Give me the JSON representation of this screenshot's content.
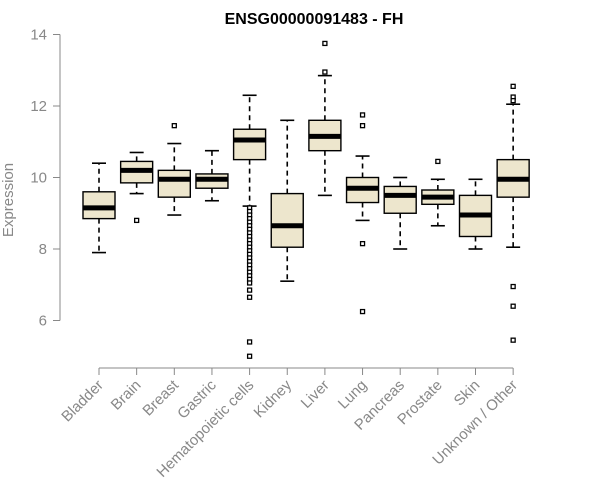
{
  "chart_data": {
    "type": "boxplot",
    "title": "ENSG00000091483 - FH",
    "xlabel": "",
    "ylabel": "Expression",
    "ylim": [
      4.6,
      14.2
    ],
    "yticks": [
      6,
      8,
      10,
      12,
      14
    ],
    "categories": [
      "Bladder",
      "Brain",
      "Breast",
      "Gastric",
      "Hematopoietic cells",
      "Kidney",
      "Liver",
      "Lung",
      "Pancreas",
      "Prostate",
      "Skin",
      "Unknown / Other"
    ],
    "colors": {
      "box_fill": "#ede6cd",
      "box_stroke": "#000000",
      "median": "#000000",
      "axis": "#888888"
    },
    "boxes": [
      {
        "name": "Bladder",
        "whisker_low": 7.9,
        "q1": 8.85,
        "median": 9.15,
        "q3": 9.6,
        "whisker_high": 10.4,
        "outliers": []
      },
      {
        "name": "Brain",
        "whisker_low": 9.55,
        "q1": 9.85,
        "median": 10.2,
        "q3": 10.45,
        "whisker_high": 10.7,
        "outliers": [
          8.8
        ]
      },
      {
        "name": "Breast",
        "whisker_low": 8.95,
        "q1": 9.45,
        "median": 9.95,
        "q3": 10.2,
        "whisker_high": 10.95,
        "outliers": [
          11.45
        ]
      },
      {
        "name": "Gastric",
        "whisker_low": 9.35,
        "q1": 9.7,
        "median": 9.95,
        "q3": 10.1,
        "whisker_high": 10.75,
        "outliers": []
      },
      {
        "name": "Hematopoietic cells",
        "whisker_low": 9.2,
        "q1": 10.5,
        "median": 11.05,
        "q3": 11.35,
        "whisker_high": 12.3,
        "outliers": [
          9.15,
          9.05,
          8.95,
          8.85,
          8.75,
          8.65,
          8.55,
          8.45,
          8.35,
          8.25,
          8.15,
          8.05,
          7.95,
          7.85,
          7.75,
          7.65,
          7.55,
          7.45,
          7.35,
          7.25,
          7.15,
          7.05,
          6.85,
          6.65,
          5.4,
          5.0
        ]
      },
      {
        "name": "Kidney",
        "whisker_low": 7.1,
        "q1": 8.05,
        "median": 8.65,
        "q3": 9.55,
        "whisker_high": 11.6,
        "outliers": []
      },
      {
        "name": "Liver",
        "whisker_low": 9.5,
        "q1": 10.75,
        "median": 11.15,
        "q3": 11.6,
        "whisker_high": 12.85,
        "outliers": [
          12.95,
          13.75
        ]
      },
      {
        "name": "Lung",
        "whisker_low": 8.8,
        "q1": 9.3,
        "median": 9.7,
        "q3": 10.0,
        "whisker_high": 10.6,
        "outliers": [
          11.75,
          11.45,
          8.15,
          6.25
        ]
      },
      {
        "name": "Pancreas",
        "whisker_low": 8.0,
        "q1": 9.0,
        "median": 9.5,
        "q3": 9.75,
        "whisker_high": 10.0,
        "outliers": []
      },
      {
        "name": "Prostate",
        "whisker_low": 8.65,
        "q1": 9.25,
        "median": 9.45,
        "q3": 9.65,
        "whisker_high": 9.95,
        "outliers": [
          10.45
        ]
      },
      {
        "name": "Skin",
        "whisker_low": 8.0,
        "q1": 8.35,
        "median": 8.95,
        "q3": 9.5,
        "whisker_high": 9.95,
        "outliers": []
      },
      {
        "name": "Unknown / Other",
        "whisker_low": 8.05,
        "q1": 9.45,
        "median": 9.95,
        "q3": 10.5,
        "whisker_high": 12.05,
        "outliers": [
          12.55,
          12.25,
          12.15,
          6.95,
          6.4,
          5.45
        ]
      }
    ]
  }
}
